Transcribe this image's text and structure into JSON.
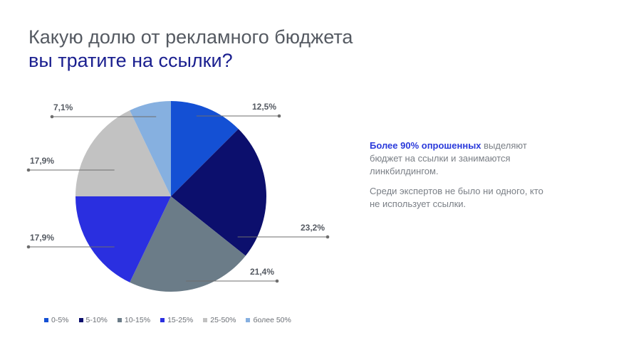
{
  "title": {
    "line1": "Какую долю от рекламного бюджета",
    "line2": "вы тратите на ссылки?"
  },
  "chart_data": {
    "type": "pie",
    "categories": [
      "0-5%",
      "5-10%",
      "10-15%",
      "15-25%",
      "25-50%",
      "более 50%"
    ],
    "values": [
      12.5,
      23.2,
      21.4,
      17.9,
      17.9,
      7.1
    ],
    "labels": [
      "12,5%",
      "23,2%",
      "21,4%",
      "17,9%",
      "17,9%",
      "7,1%"
    ],
    "colors": [
      "#1450d4",
      "#0c0f6d",
      "#6b7c88",
      "#2a2fe0",
      "#c2c2c2",
      "#86b0e0"
    ],
    "start_angle": "top",
    "direction": "clockwise",
    "legend_position": "bottom-left"
  },
  "side_text": {
    "highlight": "Более 90% опрошенных",
    "para1_rest": " выделяют бюджет на ссылки и занимаются линкбилдингом.",
    "para2": "Среди экспертов не было ни одного, кто не использует ссылки."
  }
}
